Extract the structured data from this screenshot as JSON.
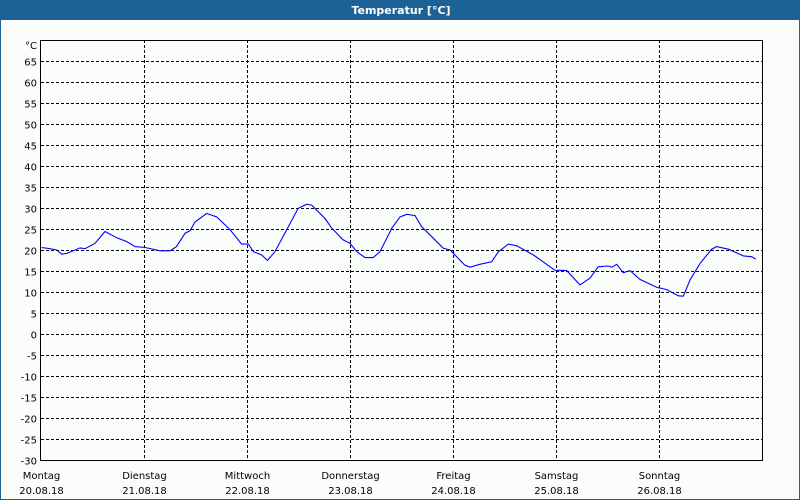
{
  "window": {
    "title": "Temperatur [°C]"
  },
  "chart_data": {
    "type": "line",
    "title": "Temperatur [°C]",
    "ylabel": "°C",
    "ylim": [
      -30,
      65
    ],
    "yticks": [
      65,
      60,
      55,
      50,
      45,
      40,
      35,
      30,
      25,
      20,
      15,
      10,
      5,
      0,
      -5,
      -10,
      -15,
      -20,
      -25,
      -30
    ],
    "grid": true,
    "line_color": "#0000ff",
    "xlim": [
      "20.08.18 00:00",
      "27.08.18 00:00"
    ],
    "xticks": [
      {
        "day": "Montag",
        "date": "20.08.18"
      },
      {
        "day": "Dienstag",
        "date": "21.08.18"
      },
      {
        "day": "Mittwoch",
        "date": "22.08.18"
      },
      {
        "day": "Donnerstag",
        "date": "23.08.18"
      },
      {
        "day": "Freitag",
        "date": "24.08.18"
      },
      {
        "day": "Samstag",
        "date": "25.08.18"
      },
      {
        "day": "Sonntag",
        "date": "26.08.18"
      }
    ],
    "series": [
      {
        "points": [
          [
            "20.08.18 00:10",
            20.6
          ],
          [
            "20.08.18 02:05",
            20.3
          ],
          [
            "20.08.18 03:40",
            20.0
          ],
          [
            "20.08.18 04:50",
            19.0
          ],
          [
            "20.08.18 06:00",
            19.2
          ],
          [
            "20.08.18 09:05",
            20.5
          ],
          [
            "20.08.18 10:15",
            20.3
          ],
          [
            "20.08.18 12:35",
            21.6
          ],
          [
            "20.08.18 14:55",
            24.4
          ],
          [
            "20.08.18 17:40",
            22.9
          ],
          [
            "20.08.18 20:00",
            22.0
          ],
          [
            "20.08.18 21:55",
            20.8
          ],
          [
            "21.08.18 00:15",
            20.6
          ],
          [
            "21.08.18 03:45",
            19.8
          ],
          [
            "21.08.18 06:05",
            19.8
          ],
          [
            "21.08.18 07:35",
            20.8
          ],
          [
            "21.08.18 09:35",
            24.0
          ],
          [
            "21.08.18 10:45",
            24.6
          ],
          [
            "21.08.18 11:55",
            26.7
          ],
          [
            "21.08.18 14:35",
            28.7
          ],
          [
            "21.08.18 16:55",
            27.9
          ],
          [
            "21.08.18 20:00",
            24.9
          ],
          [
            "21.08.18 22:45",
            21.4
          ],
          [
            "22.08.18 00:20",
            21.4
          ],
          [
            "22.08.18 01:30",
            19.6
          ],
          [
            "22.08.18 03:25",
            18.8
          ],
          [
            "22.08.18 04:45",
            17.5
          ],
          [
            "22.08.18 06:30",
            19.6
          ],
          [
            "22.08.18 09:15",
            24.8
          ],
          [
            "22.08.18 11:55",
            29.9
          ],
          [
            "22.08.18 13:55",
            30.9
          ],
          [
            "22.08.18 15:05",
            30.7
          ],
          [
            "22.08.18 18:10",
            27.5
          ],
          [
            "22.08.18 19:45",
            25.2
          ],
          [
            "22.08.18 22:25",
            22.4
          ],
          [
            "23.08.18 00:00",
            21.6
          ],
          [
            "23.08.18 01:35",
            19.6
          ],
          [
            "23.08.18 03:30",
            18.2
          ],
          [
            "23.08.18 05:25",
            18.2
          ],
          [
            "23.08.18 07:00",
            19.6
          ],
          [
            "23.08.18 09:45",
            25.2
          ],
          [
            "23.08.18 11:40",
            27.9
          ],
          [
            "23.08.18 13:15",
            28.5
          ],
          [
            "23.08.18 15:10",
            28.2
          ],
          [
            "23.08.18 16:40",
            25.6
          ],
          [
            "23.08.18 19:25",
            22.8
          ],
          [
            "23.08.18 21:45",
            20.4
          ],
          [
            "23.08.18 23:20",
            20.0
          ],
          [
            "24.08.18 02:45",
            16.4
          ],
          [
            "24.08.18 04:00",
            15.9
          ],
          [
            "24.08.18 06:15",
            16.6
          ],
          [
            "24.08.18 09:00",
            17.2
          ],
          [
            "24.08.18 10:35",
            19.6
          ],
          [
            "24.08.18 12:55",
            21.4
          ],
          [
            "24.08.18 14:50",
            21.0
          ],
          [
            "24.08.18 18:45",
            18.8
          ],
          [
            "24.08.18 21:00",
            17.2
          ],
          [
            "24.08.18 23:45",
            15.2
          ],
          [
            "25.08.18 02:30",
            15.1
          ],
          [
            "25.08.18 05:35",
            11.7
          ],
          [
            "25.08.18 07:55",
            13.3
          ],
          [
            "25.08.18 09:50",
            16.0
          ],
          [
            "25.08.18 12:10",
            16.2
          ],
          [
            "25.08.18 13:00",
            15.9
          ],
          [
            "25.08.18 14:10",
            16.6
          ],
          [
            "25.08.18 15:40",
            14.6
          ],
          [
            "25.08.18 17:15",
            15.1
          ],
          [
            "25.08.18 19:35",
            13.0
          ],
          [
            "25.08.18 23:30",
            11.1
          ],
          [
            "26.08.18 01:45",
            10.6
          ],
          [
            "26.08.18 04:30",
            9.1
          ],
          [
            "26.08.18 05:40",
            9.0
          ],
          [
            "26.08.18 07:15",
            12.9
          ],
          [
            "26.08.18 09:35",
            16.8
          ],
          [
            "26.08.18 12:15",
            20.2
          ],
          [
            "26.08.18 13:25",
            20.8
          ],
          [
            "26.08.18 16:10",
            20.2
          ],
          [
            "26.08.18 19:40",
            18.6
          ],
          [
            "26.08.18 21:35",
            18.4
          ],
          [
            "26.08.18 22:35",
            17.8
          ]
        ]
      }
    ]
  }
}
